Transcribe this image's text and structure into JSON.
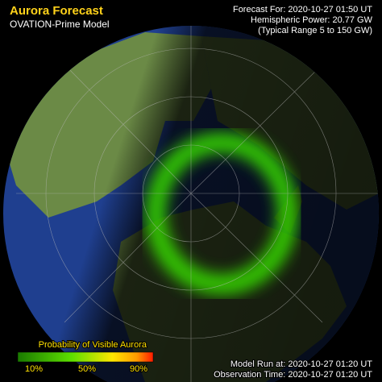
{
  "header": {
    "title": "Aurora Forecast",
    "subtitle": "OVATION-Prime Model"
  },
  "forecast": {
    "time": "Forecast For: 2020-10-27 01:50 UT",
    "power": "Hemispheric Power: 20.77 GW",
    "range": "(Typical Range 5 to 150 GW)"
  },
  "legend": {
    "title": "Probability of Visible Aurora",
    "labels": [
      "10%",
      "50%",
      "90%"
    ]
  },
  "footer": {
    "model_run": "Model Run at: 2020-10-27 01:20 UT",
    "observation": "Observation Time: 2020-10-27 01:20 UT"
  }
}
